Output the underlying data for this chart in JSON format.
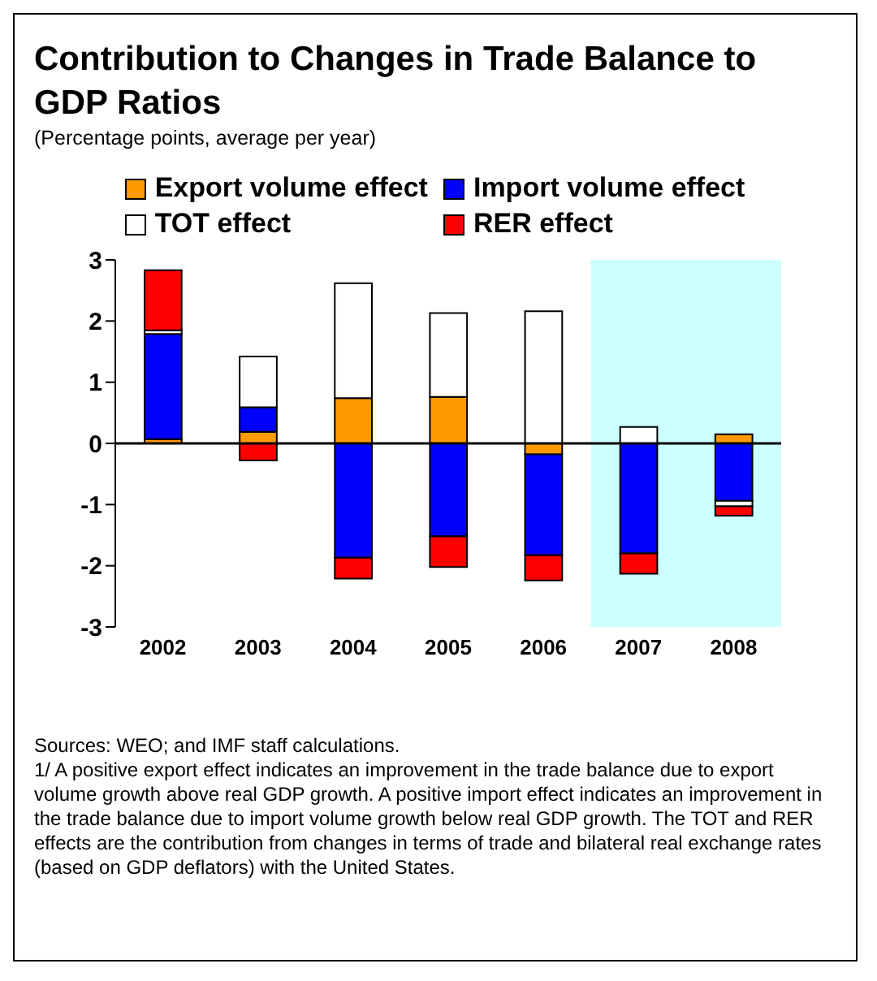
{
  "chart_data": {
    "type": "bar",
    "title": "Contribution to Changes in Trade Balance to GDP Ratios",
    "subtitle": "(Percentage points, average per year)",
    "categories": [
      "2002",
      "2003",
      "2004",
      "2005",
      "2006",
      "2007",
      "2008"
    ],
    "stacked": true,
    "series": [
      {
        "name": "Export volume effect",
        "color": "#ff9900",
        "values": [
          0.07,
          0.19,
          0.74,
          0.76,
          -0.18,
          0,
          0.15
        ]
      },
      {
        "name": "Import volume effect",
        "color": "#0000ff",
        "values": [
          1.72,
          0.4,
          -1.87,
          -1.52,
          -1.65,
          -1.8,
          -0.94
        ]
      },
      {
        "name": "TOT effect",
        "color": "#ffffff",
        "values": [
          0.06,
          0.83,
          1.88,
          1.37,
          2.16,
          0.27,
          -0.09
        ]
      },
      {
        "name": "RER effect",
        "color": "#ff0000",
        "values": [
          0.98,
          -0.28,
          -0.34,
          -0.5,
          -0.41,
          -0.33,
          -0.15
        ]
      }
    ],
    "ylim": [
      -3,
      3
    ],
    "yticks": [
      -3,
      -2,
      -1,
      0,
      1,
      2,
      3
    ],
    "grid": false,
    "legend": "top",
    "ref_lines": [
      {
        "axis": "y",
        "value": 0,
        "color": "#000000"
      }
    ],
    "bands": [
      {
        "axis": "x",
        "from": "2007",
        "to": "2008",
        "color": "#ccffff"
      }
    ],
    "annotations": [
      "Sources: WEO; and IMF staff calculations.",
      "1/ A positive export effect indicates an improvement in the trade balance due to export volume growth above real GDP growth. A positive import effect indicates an improvement in the trade balance due to import volume growth below real GDP growth. The TOT and RER effects are the contribution from changes in terms of trade and bilateral real exchange rates (based on GDP deflators) with the United States."
    ]
  }
}
